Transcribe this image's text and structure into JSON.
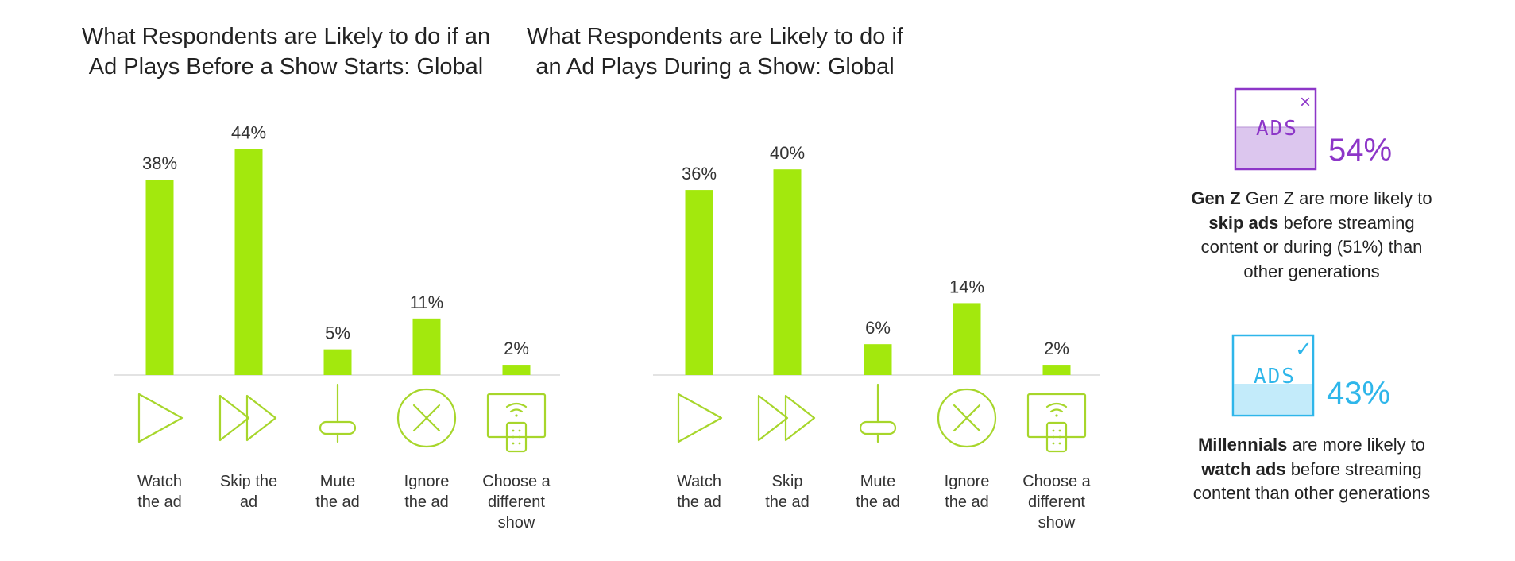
{
  "colors": {
    "bar": "#a3e80d",
    "icon": "#a7d62b",
    "baseline": "#e3e3e3",
    "purple": "#8d36c8",
    "purple_fill": "#dcc6ee",
    "blue": "#2eb6ea",
    "blue_fill": "#c3ebfa"
  },
  "chart_data": [
    {
      "type": "bar",
      "title": "What Respondents are Likely to do if an Ad Plays Before a Show Starts: Global",
      "title_lines": [
        "What Respondents are Likely to do if an",
        "Ad Plays Before a Show Starts: Global"
      ],
      "categories": [
        "Watch the ad",
        "Skip the ad",
        "Mute the ad",
        "Ignore the ad",
        "Choose a different show"
      ],
      "category_lines": [
        [
          "Watch",
          "the ad"
        ],
        [
          "Skip the",
          "ad"
        ],
        [
          "Mute",
          "the ad"
        ],
        [
          "Ignore",
          "the ad"
        ],
        [
          "Choose a",
          "different",
          "show"
        ]
      ],
      "icons": [
        "play-icon",
        "fast-forward-icon",
        "mute-slider-icon",
        "ignore-x-icon",
        "tv-remote-icon"
      ],
      "values": [
        38,
        44,
        5,
        11,
        2
      ],
      "data_labels": [
        "38%",
        "44%",
        "5%",
        "11%",
        "2%"
      ],
      "unit": "%",
      "grid": false
    },
    {
      "type": "bar",
      "title": "What Respondents are Likely to do if an Ad Plays During a Show: Global",
      "title_lines": [
        "What Respondents are Likely to do if",
        "an Ad Plays During a Show: Global"
      ],
      "categories": [
        "Watch the ad",
        "Skip the ad",
        "Mute the ad",
        "Ignore the ad",
        "Choose a different show"
      ],
      "category_lines": [
        [
          "Watch",
          "the ad"
        ],
        [
          "Skip",
          "the ad"
        ],
        [
          "Mute",
          "the ad"
        ],
        [
          "Ignore",
          "the ad"
        ],
        [
          "Choose a",
          "different",
          "show"
        ]
      ],
      "icons": [
        "play-icon",
        "fast-forward-icon",
        "mute-slider-icon",
        "ignore-x-icon",
        "tv-remote-icon"
      ],
      "values": [
        36,
        40,
        6,
        14,
        2
      ],
      "data_labels": [
        "36%",
        "40%",
        "6%",
        "14%",
        "2%"
      ],
      "unit": "%",
      "grid": false
    }
  ],
  "sidebar": {
    "genz": {
      "icon_text": "ADS",
      "icon_mark": "×",
      "pct": "54%",
      "bold1": "Gen Z",
      "text1": " Gen Z are more likely to ",
      "bold2": "skip ads",
      "text2": " before streaming content or during (51%) than other generations"
    },
    "millennials": {
      "icon_text": "ADS",
      "icon_mark": "✓",
      "pct": "43%",
      "bold1": "Millennials",
      "text1": " are more likely to ",
      "bold2": "watch ads",
      "text2": " before streaming content than other generations"
    }
  }
}
